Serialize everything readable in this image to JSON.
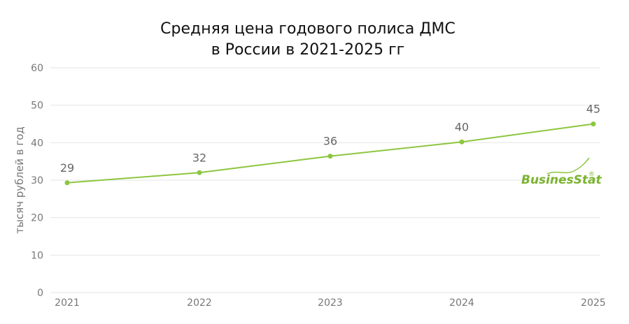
{
  "chart_data": {
    "type": "line",
    "title_lines": [
      "Средняя цена годового полиса ДМС",
      "в Росcии в 2021-2025 гг"
    ],
    "ylabel": "тысяч рублей в год",
    "xlabel": "",
    "categories": [
      "2021",
      "2022",
      "2023",
      "2024",
      "2025"
    ],
    "values": [
      29.3,
      32,
      36.4,
      40.2,
      45
    ],
    "data_labels": [
      "29",
      "32",
      "36",
      "40",
      "45"
    ],
    "ylim": [
      0,
      60
    ],
    "yticks": [
      0,
      10,
      20,
      30,
      40,
      50,
      60
    ],
    "grid": true,
    "legend": "none",
    "colors": {
      "series": "#8cc63f",
      "grid": "#e6e6e6",
      "text": "#777777",
      "logo": "#7ab32e"
    }
  },
  "logo": {
    "text": "BusinesStat",
    "mark": "®"
  }
}
